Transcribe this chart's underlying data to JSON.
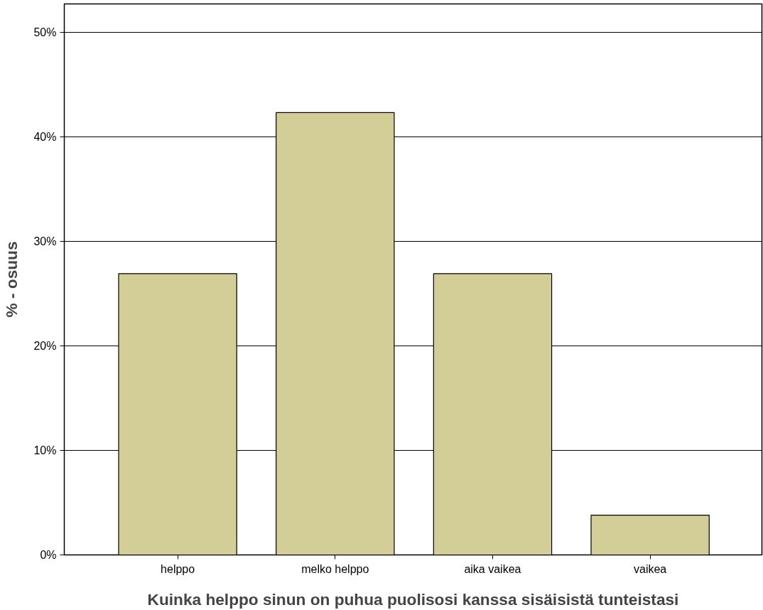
{
  "chart_data": {
    "type": "bar",
    "xlabel": "Kuinka helppo sinun on puhua puolisosi kanssa sisäisistä tunteistasi",
    "ylabel": "% - osuus",
    "categories": [
      "helppo",
      "melko helppo",
      "aika vaikea",
      "vaikea"
    ],
    "values": [
      26.9,
      42.3,
      26.9,
      3.8
    ],
    "color": "#d3ce97",
    "ylim": [
      0,
      52.7
    ],
    "yticks": [
      {
        "value": 0,
        "label": "0%"
      },
      {
        "value": 10,
        "label": "10%"
      },
      {
        "value": 20,
        "label": "20%"
      },
      {
        "value": 30,
        "label": "30%"
      },
      {
        "value": 40,
        "label": "40%"
      },
      {
        "value": 50,
        "label": "50%"
      }
    ],
    "grid": "y"
  }
}
